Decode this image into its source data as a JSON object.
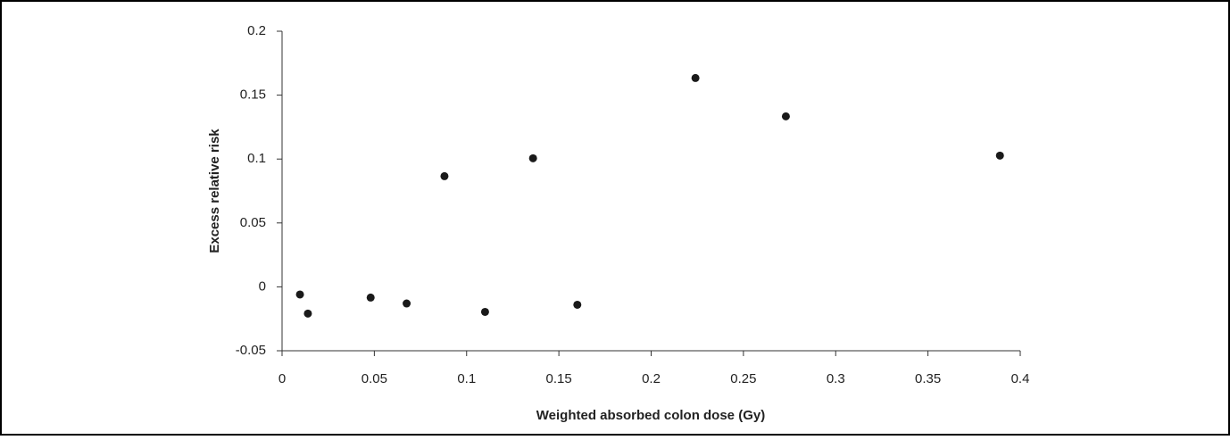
{
  "chart_data": {
    "type": "scatter",
    "xlabel": "Weighted absorbed colon dose (Gy)",
    "ylabel": "Excess relative risk",
    "x": [
      0.0097,
      0.014,
      0.048,
      0.0675,
      0.088,
      0.11,
      0.136,
      0.16,
      0.224,
      0.273,
      0.389
    ],
    "values": [
      -0.006,
      -0.0209,
      -0.0084,
      -0.013,
      0.0866,
      -0.0196,
      0.1006,
      -0.014,
      0.1634,
      0.1334,
      0.1027
    ],
    "color": "#1a1a1a",
    "xlim": [
      0,
      0.4
    ],
    "ylim": [
      -0.05,
      0.2
    ],
    "xticks": [
      0,
      0.05,
      0.1,
      0.15,
      0.2,
      0.25,
      0.3,
      0.35,
      0.4
    ],
    "yticks": [
      -0.05,
      0,
      0.05,
      0.1,
      0.15,
      0.2
    ]
  }
}
